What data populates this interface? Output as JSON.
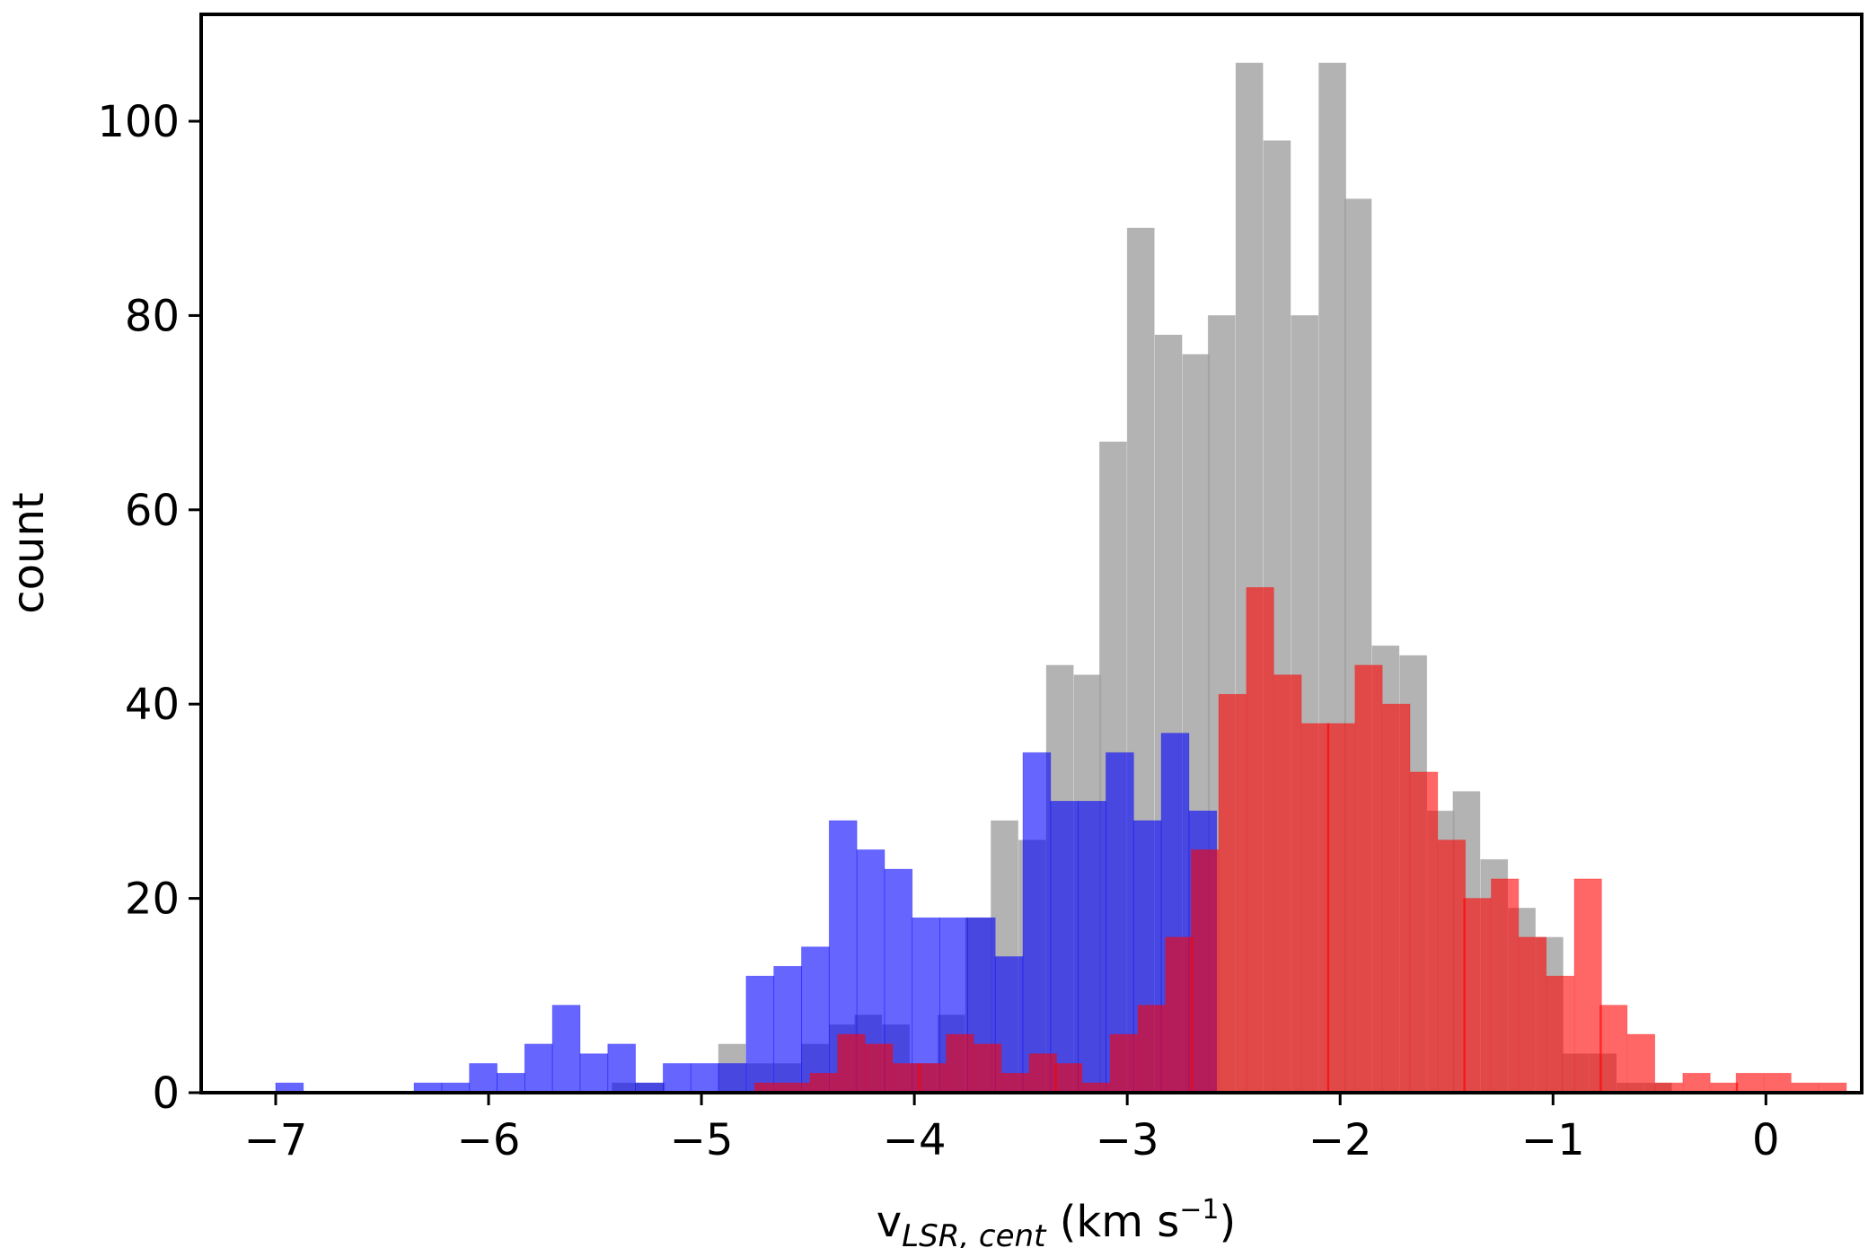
{
  "chart_data": {
    "type": "bar",
    "subtype": "overlaid-histogram",
    "xlabel": {
      "base": "v",
      "subscript": "LSR, cent",
      "unit_prefix": " (km s",
      "unit_superscript": "−1",
      "unit_suffix": ")"
    },
    "ylabel": "count",
    "xlim": [
      -7.35,
      0.45
    ],
    "ylim": [
      0,
      111
    ],
    "xticks": [
      -7,
      -6,
      -5,
      -4,
      -3,
      -2,
      -1,
      0
    ],
    "xtick_labels": [
      "−7",
      "−6",
      "−5",
      "−4",
      "−3",
      "−2",
      "−1",
      "0"
    ],
    "yticks": [
      0,
      20,
      40,
      60,
      80,
      100
    ],
    "ytick_labels": [
      "0",
      "20",
      "40",
      "60",
      "80",
      "100"
    ],
    "grid": false,
    "legend": "none",
    "series": [
      {
        "color": "#a0a0a0",
        "opacity": 0.8,
        "bin_width": 0.127,
        "bins": [
          [
            -5.42,
            1
          ],
          [
            -5.3,
            1
          ],
          [
            -4.92,
            5
          ],
          [
            -4.79,
            3
          ],
          [
            -4.66,
            3
          ],
          [
            -4.53,
            5
          ],
          [
            -4.4,
            7
          ],
          [
            -4.28,
            8
          ],
          [
            -4.15,
            7
          ],
          [
            -4.02,
            3
          ],
          [
            -3.89,
            8
          ],
          [
            -3.76,
            18
          ],
          [
            -3.64,
            28
          ],
          [
            -3.51,
            26
          ],
          [
            -3.38,
            44
          ],
          [
            -3.25,
            43
          ],
          [
            -3.13,
            67
          ],
          [
            -3.0,
            89
          ],
          [
            -2.87,
            78
          ],
          [
            -2.74,
            76
          ],
          [
            -2.62,
            80
          ],
          [
            -2.49,
            106
          ],
          [
            -2.36,
            98
          ],
          [
            -2.23,
            80
          ],
          [
            -2.1,
            106
          ],
          [
            -1.98,
            92
          ],
          [
            -1.85,
            46
          ],
          [
            -1.72,
            45
          ],
          [
            -1.59,
            29
          ],
          [
            -1.47,
            31
          ],
          [
            -1.34,
            24
          ],
          [
            -1.21,
            19
          ],
          [
            -1.08,
            16
          ],
          [
            -0.96,
            4
          ],
          [
            -0.83,
            4
          ],
          [
            -0.7,
            1
          ],
          [
            -0.57,
            1
          ]
        ]
      },
      {
        "color": "#0000ff",
        "opacity": 0.6,
        "bin_width": 0.13,
        "bins": [
          [
            -7.0,
            1
          ],
          [
            -6.35,
            1
          ],
          [
            -6.22,
            1
          ],
          [
            -6.09,
            3
          ],
          [
            -5.96,
            2
          ],
          [
            -5.83,
            5
          ],
          [
            -5.7,
            9
          ],
          [
            -5.57,
            4
          ],
          [
            -5.44,
            5
          ],
          [
            -5.31,
            1
          ],
          [
            -5.18,
            3
          ],
          [
            -5.05,
            3
          ],
          [
            -4.92,
            3
          ],
          [
            -4.79,
            12
          ],
          [
            -4.66,
            13
          ],
          [
            -4.53,
            15
          ],
          [
            -4.4,
            28
          ],
          [
            -4.27,
            25
          ],
          [
            -4.14,
            23
          ],
          [
            -4.01,
            18
          ],
          [
            -3.88,
            18
          ],
          [
            -3.75,
            18
          ],
          [
            -3.62,
            14
          ],
          [
            -3.49,
            35
          ],
          [
            -3.36,
            30
          ],
          [
            -3.23,
            30
          ],
          [
            -3.1,
            35
          ],
          [
            -2.97,
            28
          ],
          [
            -2.84,
            37
          ],
          [
            -2.71,
            29
          ]
        ]
      },
      {
        "color": "#ff0000",
        "opacity": 0.6,
        "bin_width": 0.128,
        "bins": [
          [
            -4.75,
            1
          ],
          [
            -4.62,
            1
          ],
          [
            -4.49,
            2
          ],
          [
            -4.36,
            6
          ],
          [
            -4.23,
            5
          ],
          [
            -4.1,
            3
          ],
          [
            -3.98,
            3
          ],
          [
            -3.85,
            6
          ],
          [
            -3.72,
            5
          ],
          [
            -3.59,
            2
          ],
          [
            -3.46,
            4
          ],
          [
            -3.34,
            3
          ],
          [
            -3.21,
            1
          ],
          [
            -3.08,
            6
          ],
          [
            -2.95,
            9
          ],
          [
            -2.82,
            16
          ],
          [
            -2.7,
            25
          ],
          [
            -2.57,
            41
          ],
          [
            -2.44,
            52
          ],
          [
            -2.31,
            43
          ],
          [
            -2.18,
            38
          ],
          [
            -2.06,
            38
          ],
          [
            -1.93,
            44
          ],
          [
            -1.8,
            40
          ],
          [
            -1.67,
            33
          ],
          [
            -1.54,
            26
          ],
          [
            -1.42,
            20
          ],
          [
            -1.29,
            22
          ],
          [
            -1.16,
            16
          ],
          [
            -1.03,
            12
          ],
          [
            -0.9,
            22
          ],
          [
            -0.78,
            9
          ],
          [
            -0.65,
            6
          ],
          [
            -0.52,
            1
          ],
          [
            -0.39,
            2
          ],
          [
            -0.26,
            1
          ],
          [
            -0.14,
            2
          ],
          [
            -0.01,
            2
          ],
          [
            0.12,
            1
          ],
          [
            0.25,
            1
          ]
        ]
      }
    ]
  }
}
